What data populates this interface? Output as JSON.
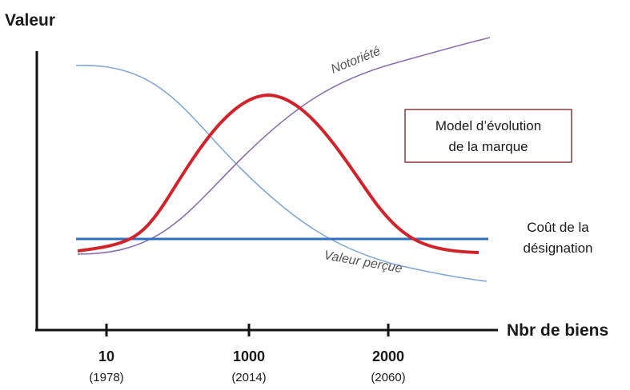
{
  "chart_data": {
    "type": "line",
    "ylabel": "Valeur",
    "xlabel": "Nbr de biens",
    "x_ticks": [
      {
        "value": "10",
        "sub": "(1978)"
      },
      {
        "value": "1000",
        "sub": "(2014)"
      },
      {
        "value": "2000",
        "sub": "(2060)"
      }
    ],
    "series": [
      {
        "name": "Notoriété",
        "color": "#8a6fae",
        "shape": "rising-s-curve"
      },
      {
        "name": "Valeur perçue",
        "color": "#7fa8d8",
        "shape": "falling-s-curve"
      },
      {
        "name": "",
        "color": "#d2232a",
        "shape": "bell-curve"
      },
      {
        "name": "Coût de la désignation",
        "color": "#2f6fc0",
        "shape": "constant"
      }
    ],
    "annotation_box": {
      "line1": "Model d’évolution",
      "line2": "de la marque",
      "border_color": "#8b3a3a"
    },
    "cost_label": {
      "line1": "Coût de la",
      "line2": "désignation"
    }
  }
}
